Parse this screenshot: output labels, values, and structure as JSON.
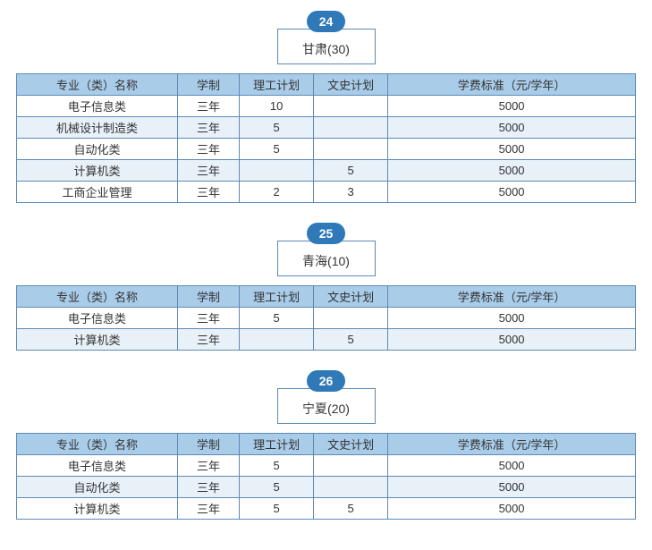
{
  "colors": {
    "badge_bg": "#2f79b9",
    "header_bg": "#a9cce9",
    "alt_row_bg": "#e8f1f8",
    "border": "#5d8ab5",
    "text": "#333333"
  },
  "columns": [
    "专业（类）名称",
    "学制",
    "理工计划",
    "文史计划",
    "学费标准（元/学年）"
  ],
  "sections": [
    {
      "badge": "24",
      "title": "甘肃(30)",
      "rows": [
        {
          "cells": [
            "电子信息类",
            "三年",
            "10",
            "",
            "5000"
          ],
          "alt": false
        },
        {
          "cells": [
            "机械设计制造类",
            "三年",
            "5",
            "",
            "5000"
          ],
          "alt": true
        },
        {
          "cells": [
            "自动化类",
            "三年",
            "5",
            "",
            "5000"
          ],
          "alt": false
        },
        {
          "cells": [
            "计算机类",
            "三年",
            "",
            "5",
            "5000"
          ],
          "alt": true
        },
        {
          "cells": [
            "工商企业管理",
            "三年",
            "2",
            "3",
            "5000"
          ],
          "alt": false
        }
      ]
    },
    {
      "badge": "25",
      "title": "青海(10)",
      "rows": [
        {
          "cells": [
            "电子信息类",
            "三年",
            "5",
            "",
            "5000"
          ],
          "alt": false
        },
        {
          "cells": [
            "计算机类",
            "三年",
            "",
            "5",
            "5000"
          ],
          "alt": true
        }
      ]
    },
    {
      "badge": "26",
      "title": "宁夏(20)",
      "rows": [
        {
          "cells": [
            "电子信息类",
            "三年",
            "5",
            "",
            "5000"
          ],
          "alt": false
        },
        {
          "cells": [
            "自动化类",
            "三年",
            "5",
            "",
            "5000"
          ],
          "alt": true
        },
        {
          "cells": [
            "计算机类",
            "三年",
            "5",
            "5",
            "5000"
          ],
          "alt": false
        }
      ]
    }
  ]
}
